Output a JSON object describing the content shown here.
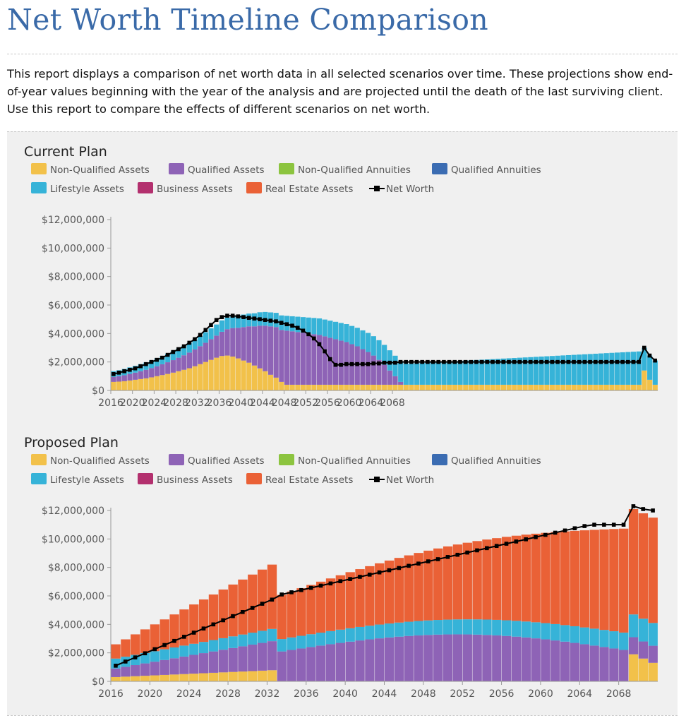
{
  "page": {
    "title": "Net Worth Timeline Comparison",
    "description": "This report displays a comparison of net worth data in all selected scenarios over time. These projections show end-of-year values beginning with the year of the analysis and are projected until the death of the last surviving client. Use this report to compare the effects of different scenarios on net worth."
  },
  "legend_colors": {
    "Non-Qualified Assets": "#f2c14a",
    "Qualified Assets": "#8e63b6",
    "Non-Qualified Annuities": "#8cc43f",
    "Qualified Annuities": "#3b6cb2",
    "Lifestyle Assets": "#36b3d8",
    "Business Assets": "#b3306e",
    "Real Estate Assets": "#ea6136",
    "Net Worth": "#000000"
  },
  "chart_data": [
    {
      "type": "stacked-bar-line",
      "title": "Current Plan",
      "legend": [
        "Non-Qualified Assets",
        "Qualified Assets",
        "Non-Qualified Annuities",
        "Qualified Annuities",
        "Lifestyle Assets",
        "Business Assets",
        "Real Estate Assets",
        "Net Worth"
      ],
      "x_tick_labels": [
        "2016",
        "2020",
        "2024",
        "2028",
        "2032",
        "2036",
        "2040",
        "2044",
        "2048",
        "2052",
        "2056",
        "2060",
        "2064",
        "2068"
      ],
      "y_tick_labels": [
        "$0",
        "$2,000,000",
        "$4,000,000",
        "$6,000,000",
        "$8,000,000",
        "$10,000,000",
        "$12,000,000"
      ],
      "ylim": [
        0,
        12000000
      ],
      "x_start": 2016,
      "series": [
        {
          "name": "Non-Qualified Assets",
          "values": [
            0.6,
            0.62,
            0.65,
            0.7,
            0.75,
            0.8,
            0.85,
            0.92,
            1.0,
            1.08,
            1.16,
            1.25,
            1.35,
            1.45,
            1.56,
            1.7,
            1.85,
            2.0,
            2.15,
            2.3,
            2.42,
            2.45,
            2.38,
            2.25,
            2.1,
            1.95,
            1.75,
            1.55,
            1.35,
            1.1,
            0.9,
            0.6,
            0.4,
            0.4,
            0.4,
            0.4,
            0.4,
            0.4,
            0.4,
            0.4,
            0.4,
            0.4,
            0.4,
            0.4,
            0.4,
            0.4,
            0.4,
            0.4,
            0.4,
            0.4,
            0.4,
            0.4,
            0.4,
            0.4,
            0.4,
            0.4,
            0.4,
            0.4,
            0.4,
            0.4,
            0.4,
            0.4,
            0.4,
            0.4,
            0.4,
            0.4,
            0.4,
            0.4,
            0.4,
            0.4,
            0.4,
            0.4,
            0.4,
            0.4,
            0.4,
            0.4,
            0.4,
            0.4,
            0.4,
            0.4,
            0.4,
            0.4,
            0.4,
            0.4,
            0.4,
            0.4,
            0.4,
            0.4,
            0.4,
            0.4,
            0.4,
            0.4,
            0.4,
            0.4,
            0.4,
            0.4,
            0.4,
            0.4,
            1.4,
            0.75,
            0.4
          ]
        },
        {
          "name": "Qualified Assets",
          "values": [
            0.35,
            0.38,
            0.42,
            0.46,
            0.5,
            0.55,
            0.6,
            0.65,
            0.7,
            0.76,
            0.82,
            0.88,
            0.95,
            1.02,
            1.1,
            1.18,
            1.26,
            1.35,
            1.45,
            1.55,
            1.7,
            1.85,
            2.0,
            2.15,
            2.35,
            2.55,
            2.75,
            3.0,
            3.2,
            3.4,
            3.55,
            3.65,
            3.8,
            3.75,
            3.7,
            3.65,
            3.6,
            3.55,
            3.5,
            3.4,
            3.3,
            3.2,
            3.1,
            3.0,
            2.85,
            2.7,
            2.5,
            2.3,
            2.05,
            1.75,
            1.4,
            1.0,
            0.6,
            0.2,
            0,
            0,
            0,
            0,
            0,
            0,
            0,
            0,
            0,
            0,
            0,
            0,
            0,
            0,
            0,
            0,
            0,
            0,
            0,
            0,
            0,
            0,
            0,
            0,
            0,
            0,
            0,
            0,
            0,
            0,
            0,
            0,
            0,
            0,
            0,
            0,
            0,
            0,
            0,
            0,
            0,
            0,
            0,
            0,
            0,
            0,
            0,
            0,
            0
          ]
        },
        {
          "name": "Lifestyle Assets",
          "values": [
            0.4,
            0.42,
            0.44,
            0.46,
            0.48,
            0.5,
            0.52,
            0.54,
            0.56,
            0.58,
            0.6,
            0.62,
            0.64,
            0.66,
            0.68,
            0.7,
            0.72,
            0.74,
            0.76,
            0.78,
            0.8,
            0.82,
            0.84,
            0.86,
            0.88,
            0.9,
            0.92,
            0.94,
            0.96,
            0.98,
            1.0,
            1.02,
            1.04,
            1.06,
            1.08,
            1.1,
            1.12,
            1.14,
            1.16,
            1.18,
            1.2,
            1.22,
            1.24,
            1.26,
            1.28,
            1.3,
            1.32,
            1.34,
            1.36,
            1.38,
            1.4,
            1.42,
            1.44,
            1.46,
            1.48,
            1.5,
            1.52,
            1.54,
            1.56,
            1.58,
            1.6,
            1.62,
            1.64,
            1.66,
            1.68,
            1.7,
            1.72,
            1.74,
            1.76,
            1.78,
            1.8,
            1.82,
            1.84,
            1.86,
            1.88,
            1.9,
            1.92,
            1.94,
            1.96,
            1.98,
            2.0,
            2.02,
            2.04,
            2.06,
            2.08,
            2.1,
            2.12,
            2.14,
            2.16,
            2.18,
            2.2,
            2.22,
            2.24,
            2.26,
            2.28,
            2.3,
            2.32,
            2.34,
            1.6,
            1.7,
            1.7
          ]
        }
      ],
      "net_worth": [
        1.15,
        1.25,
        1.35,
        1.45,
        1.55,
        1.7,
        1.85,
        2.0,
        2.15,
        2.3,
        2.5,
        2.7,
        2.9,
        3.1,
        3.35,
        3.6,
        3.9,
        4.25,
        4.6,
        4.95,
        5.15,
        5.25,
        5.25,
        5.2,
        5.15,
        5.1,
        5.05,
        5.0,
        4.95,
        4.9,
        4.85,
        4.75,
        4.65,
        4.55,
        4.4,
        4.2,
        3.95,
        3.65,
        3.25,
        2.75,
        2.2,
        1.8,
        1.8,
        1.85,
        1.85,
        1.85,
        1.85,
        1.85,
        1.9,
        1.9,
        1.95,
        1.95,
        1.95,
        2.0,
        2.0,
        2.0,
        2.0,
        2.0,
        2.0,
        2.0,
        2.0,
        2.0,
        2.0,
        2.0,
        2.0,
        2.0,
        2.0,
        2.0,
        2.0,
        2.0,
        2.0,
        2.0,
        2.0,
        2.0,
        2.0,
        2.0,
        2.0,
        2.0,
        2.0,
        2.0,
        2.0,
        2.0,
        2.0,
        2.0,
        2.0,
        2.0,
        2.0,
        2.0,
        2.0,
        2.0,
        2.0,
        2.0,
        2.0,
        2.0,
        2.0,
        2.0,
        2.0,
        2.0,
        3.0,
        2.45,
        2.1
      ]
    },
    {
      "type": "stacked-bar-line",
      "title": "Proposed Plan",
      "legend": [
        "Non-Qualified Assets",
        "Qualified Assets",
        "Non-Qualified Annuities",
        "Qualified Annuities",
        "Lifestyle Assets",
        "Business Assets",
        "Real Estate Assets",
        "Net Worth"
      ],
      "x_tick_labels": [
        "2016",
        "2020",
        "2024",
        "2028",
        "2032",
        "2036",
        "2040",
        "2044",
        "2048",
        "2052",
        "2056",
        "2060",
        "2064",
        "2068"
      ],
      "y_tick_labels": [
        "$0",
        "$2,000,000",
        "$4,000,000",
        "$6,000,000",
        "$8,000,000",
        "$10,000,000",
        "$12,000,000"
      ],
      "ylim": [
        0,
        12000000
      ],
      "x_start": 2016
    }
  ]
}
